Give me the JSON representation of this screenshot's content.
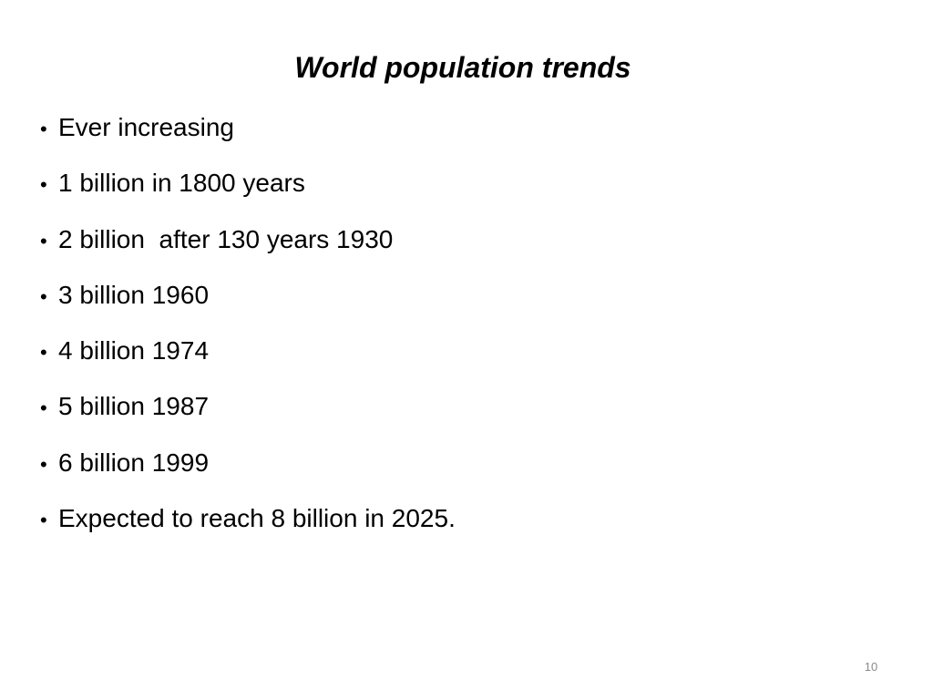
{
  "slide": {
    "title": "World population trends",
    "bullet_glyph": "•",
    "bullets": [
      "Ever increasing",
      "1 billion in 1800 years",
      "2 billion  after 130 years 1930",
      "3 billion 1960",
      "4 billion 1974",
      "5 billion 1987",
      "6 billion 1999",
      "Expected to reach 8 billion in 2025."
    ],
    "page_number": "10"
  }
}
